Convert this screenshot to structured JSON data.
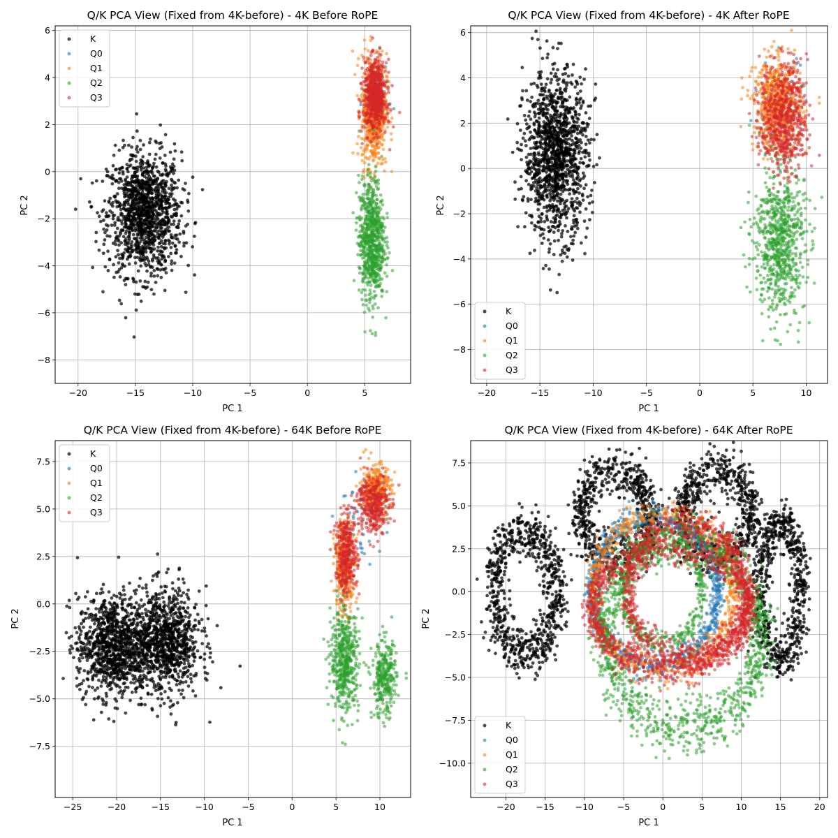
{
  "figure": {
    "colors": {
      "K": "#000000",
      "Q0": "#1f77b4",
      "Q1": "#ff7f0e",
      "Q2": "#2ca02c",
      "Q3": "#d62728"
    }
  },
  "chart_data": [
    {
      "type": "scatter",
      "title": "Q/K PCA View (Fixed from 4K-before) - 4K Before RoPE",
      "xlabel": "PC 1",
      "ylabel": "PC 2",
      "xlim": [
        -22,
        9
      ],
      "ylim": [
        -9,
        6.2
      ],
      "xticks": [
        -20,
        -15,
        -10,
        -5,
        0,
        5
      ],
      "xtick_labels": [
        "−20",
        "−15",
        "−10",
        "−5",
        "0",
        "5"
      ],
      "yticks": [
        -8,
        -6,
        -4,
        -2,
        0,
        2,
        4,
        6
      ],
      "ytick_labels": [
        "−8",
        "−6",
        "−4",
        "−2",
        "0",
        "2",
        "4",
        "6"
      ],
      "grid": true,
      "legend": {
        "position": "upper-left",
        "entries": [
          "K",
          "Q0",
          "Q1",
          "Q2",
          "Q3"
        ]
      },
      "series": [
        {
          "name": "K",
          "color": "#000000",
          "clusters": [
            {
              "cx": -14.2,
              "cy": -1.8,
              "sx": 1.6,
              "sy": 1.3,
              "n": 1300
            }
          ]
        },
        {
          "name": "Q0",
          "color": "#1f77b4",
          "clusters": [
            {
              "cx": 5.9,
              "cy": 3.0,
              "sx": 0.55,
              "sy": 0.8,
              "n": 60
            }
          ]
        },
        {
          "name": "Q1",
          "color": "#ff7f0e",
          "clusters": [
            {
              "cx": 5.8,
              "cy": 2.6,
              "sx": 0.55,
              "sy": 1.2,
              "n": 600
            }
          ]
        },
        {
          "name": "Q2",
          "color": "#2ca02c",
          "clusters": [
            {
              "cx": 5.6,
              "cy": -2.9,
              "sx": 0.55,
              "sy": 1.3,
              "n": 750
            }
          ]
        },
        {
          "name": "Q3",
          "color": "#d62728",
          "clusters": [
            {
              "cx": 5.9,
              "cy": 3.2,
              "sx": 0.5,
              "sy": 0.75,
              "n": 650
            }
          ]
        }
      ]
    },
    {
      "type": "scatter",
      "title": "Q/K PCA View (Fixed from 4K-before) - 4K After RoPE",
      "xlabel": "PC 1",
      "ylabel": "PC 2",
      "xlim": [
        -21.5,
        12.0
      ],
      "ylim": [
        -9.5,
        6.3
      ],
      "xticks": [
        -20,
        -15,
        -10,
        -5,
        0,
        5,
        10
      ],
      "xtick_labels": [
        "−20",
        "−15",
        "−10",
        "−5",
        "0",
        "5",
        "10"
      ],
      "yticks": [
        -8,
        -6,
        -4,
        -2,
        0,
        2,
        4,
        6
      ],
      "ytick_labels": [
        "−8",
        "−6",
        "−4",
        "−2",
        "0",
        "2",
        "4",
        "6"
      ],
      "grid": true,
      "legend": {
        "position": "lower-left",
        "entries": [
          "K",
          "Q0",
          "Q1",
          "Q2",
          "Q3"
        ]
      },
      "series": [
        {
          "name": "K",
          "color": "#000000",
          "clusters": [
            {
              "cx": -13.5,
              "cy": 0.6,
              "sx": 1.5,
              "sy": 1.8,
              "n": 1300
            }
          ]
        },
        {
          "name": "Q0",
          "color": "#1f77b4",
          "clusters": [
            {
              "cx": 7.5,
              "cy": 2.6,
              "sx": 1.2,
              "sy": 1.1,
              "n": 60
            }
          ]
        },
        {
          "name": "Q1",
          "color": "#ff7f0e",
          "clusters": [
            {
              "cx": 7.3,
              "cy": 2.8,
              "sx": 1.1,
              "sy": 1.0,
              "n": 600
            }
          ]
        },
        {
          "name": "Q2",
          "color": "#2ca02c",
          "clusters": [
            {
              "cx": 7.5,
              "cy": -3.2,
              "sx": 1.2,
              "sy": 1.6,
              "n": 750
            }
          ]
        },
        {
          "name": "Q3",
          "color": "#d62728",
          "clusters": [
            {
              "cx": 7.9,
              "cy": 2.2,
              "sx": 1.1,
              "sy": 1.2,
              "n": 650
            }
          ]
        }
      ]
    },
    {
      "type": "scatter",
      "title": "Q/K PCA View (Fixed from 4K-before) - 64K Before RoPE",
      "xlabel": "PC 1",
      "ylabel": "PC 2",
      "xlim": [
        -27,
        13.5
      ],
      "ylim": [
        -10.2,
        8.6
      ],
      "xticks": [
        -25,
        -20,
        -15,
        -10,
        -5,
        0,
        5,
        10
      ],
      "xtick_labels": [
        "−25",
        "−20",
        "−15",
        "−10",
        "−5",
        "0",
        "5",
        "10"
      ],
      "yticks": [
        -7.5,
        -5.0,
        -2.5,
        0.0,
        2.5,
        5.0,
        7.5
      ],
      "ytick_labels": [
        "−7.5",
        "−5.0",
        "−2.5",
        "0.0",
        "2.5",
        "5.0",
        "7.5"
      ],
      "grid": true,
      "legend": {
        "position": "upper-left",
        "entries": [
          "K",
          "Q0",
          "Q1",
          "Q2",
          "Q3"
        ]
      },
      "series": [
        {
          "name": "K",
          "color": "#000000",
          "clusters": [
            {
              "cx": -20.5,
              "cy": -2.2,
              "sx": 2.0,
              "sy": 1.3,
              "n": 1000
            },
            {
              "cx": -14.5,
              "cy": -2.0,
              "sx": 2.0,
              "sy": 1.4,
              "n": 1000
            }
          ]
        },
        {
          "name": "Q0",
          "color": "#1f77b4",
          "clusters": [
            {
              "cx": 8.0,
              "cy": 4.5,
              "sx": 1.5,
              "sy": 1.0,
              "n": 60
            }
          ]
        },
        {
          "name": "Q1",
          "color": "#ff7f0e",
          "clusters": [
            {
              "cx": 6.0,
              "cy": 2.0,
              "sx": 0.6,
              "sy": 1.2,
              "n": 300
            },
            {
              "cx": 9.5,
              "cy": 6.0,
              "sx": 0.9,
              "sy": 0.7,
              "n": 300
            }
          ]
        },
        {
          "name": "Q2",
          "color": "#2ca02c",
          "clusters": [
            {
              "cx": 6.0,
              "cy": -3.0,
              "sx": 0.8,
              "sy": 1.3,
              "n": 500
            },
            {
              "cx": 10.5,
              "cy": -4.0,
              "sx": 0.7,
              "sy": 1.0,
              "n": 300
            }
          ]
        },
        {
          "name": "Q3",
          "color": "#d62728",
          "clusters": [
            {
              "cx": 6.2,
              "cy": 2.6,
              "sx": 0.6,
              "sy": 1.0,
              "n": 350
            },
            {
              "cx": 9.2,
              "cy": 5.3,
              "sx": 0.9,
              "sy": 0.8,
              "n": 350
            }
          ]
        }
      ]
    },
    {
      "type": "scatter",
      "title": "Q/K PCA View (Fixed from 4K-before) - 64K After RoPE",
      "xlabel": "PC 1",
      "ylabel": "PC 2",
      "xlim": [
        -24.5,
        21.0
      ],
      "ylim": [
        -12.0,
        8.8
      ],
      "xticks": [
        -20,
        -15,
        -10,
        -5,
        0,
        5,
        10,
        15,
        20
      ],
      "xtick_labels": [
        "−20",
        "−15",
        "−10",
        "−5",
        "0",
        "5",
        "10",
        "15",
        "20"
      ],
      "yticks": [
        -10.0,
        -7.5,
        -5.0,
        -2.5,
        0.0,
        2.5,
        5.0,
        7.5
      ],
      "ytick_labels": [
        "−10.0",
        "−7.5",
        "−5.0",
        "−2.5",
        "0.0",
        "2.5",
        "5.0",
        "7.5"
      ],
      "grid": true,
      "legend": {
        "position": "lower-left",
        "entries": [
          "K",
          "Q0",
          "Q1",
          "Q2",
          "Q3"
        ]
      },
      "series": [
        {
          "name": "K",
          "color": "#000000",
          "rings": [
            {
              "cx": -17.5,
              "cy": 0.0,
              "rx": 4.0,
              "ry": 3.5,
              "w": 1.4,
              "n": 800
            },
            {
              "cx": -6.0,
              "cy": 4.5,
              "rx": 4.5,
              "ry": 2.5,
              "w": 1.4,
              "n": 700
            },
            {
              "cx": 7.0,
              "cy": 4.5,
              "rx": 4.5,
              "ry": 2.5,
              "w": 1.4,
              "n": 700
            },
            {
              "cx": 15.0,
              "cy": 0.0,
              "rx": 2.6,
              "ry": 4.0,
              "w": 1.3,
              "n": 700
            }
          ]
        },
        {
          "name": "Q0",
          "color": "#1f77b4",
          "rings": [
            {
              "cx": -1.0,
              "cy": 0.0,
              "rx": 8.0,
              "ry": 4.3,
              "w": 0.8,
              "n": 900
            }
          ]
        },
        {
          "name": "Q1",
          "color": "#ff7f0e",
          "rings": [
            {
              "cx": 0.0,
              "cy": 0.0,
              "rx": 9.0,
              "ry": 4.5,
              "w": 0.9,
              "n": 700
            }
          ]
        },
        {
          "name": "Q2",
          "color": "#2ca02c",
          "rings": [
            {
              "cx": 2.5,
              "cy": -2.5,
              "rx": 10.0,
              "ry": 5.5,
              "w": 1.6,
              "n": 1300
            },
            {
              "cx": 0.0,
              "cy": 0.0,
              "rx": 5.0,
              "ry": 3.0,
              "w": 0.7,
              "n": 400
            }
          ]
        },
        {
          "name": "Q3",
          "color": "#d62728",
          "rings": [
            {
              "cx": 1.0,
              "cy": -1.0,
              "rx": 10.0,
              "ry": 3.5,
              "w": 1.0,
              "n": 1100
            },
            {
              "cx": 3.0,
              "cy": 0.0,
              "rx": 7.5,
              "ry": 4.0,
              "w": 1.0,
              "n": 900
            }
          ]
        }
      ]
    }
  ]
}
